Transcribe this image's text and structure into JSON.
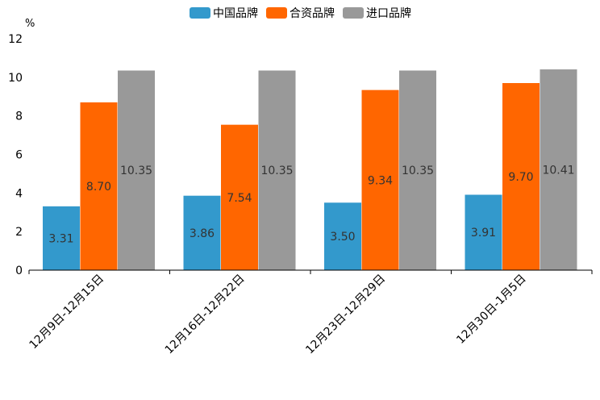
{
  "chart_data": {
    "type": "bar",
    "title": "",
    "xlabel": "",
    "ylabel": "%",
    "ylim": [
      0,
      12
    ],
    "yticks": [
      0,
      2,
      4,
      6,
      8,
      10,
      12
    ],
    "grid": false,
    "legend_position": "top-center",
    "categories": [
      "12月9日-12月15日",
      "12月16日-12月22日",
      "12月23日-12月29日",
      "12月30日-1月5日"
    ],
    "series": [
      {
        "name": "中国品牌",
        "color": "#3399cc",
        "values": [
          3.31,
          3.86,
          3.5,
          3.91
        ],
        "labels": [
          "3.31",
          "3.86",
          "3.50",
          "3.91"
        ]
      },
      {
        "name": "合资品牌",
        "color": "#ff6600",
        "values": [
          8.7,
          7.54,
          9.34,
          9.7
        ],
        "labels": [
          "8.70",
          "7.54",
          "9.34",
          "9.70"
        ]
      },
      {
        "name": "进口品牌",
        "color": "#999999",
        "values": [
          10.35,
          10.35,
          10.35,
          10.41
        ],
        "labels": [
          "10.35",
          "10.35",
          "10.35",
          "10.41"
        ]
      }
    ]
  }
}
